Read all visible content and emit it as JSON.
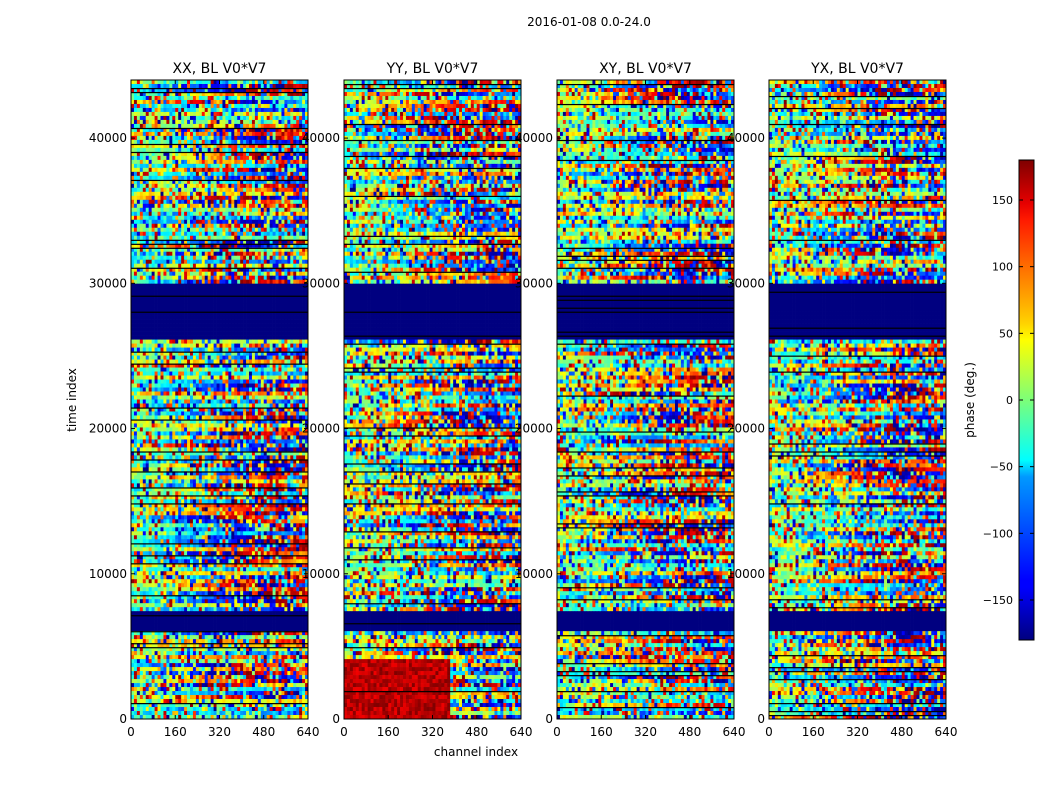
{
  "figure": {
    "title": "2016-01-08 0.0-24.0",
    "xlabel": "channel index",
    "ylabel": "time index",
    "colorbar_label": "phase (deg.)"
  },
  "chart_data": {
    "type": "heatmap",
    "colormap": "jet",
    "title": "2016-01-08 0.0-24.0",
    "xlabel": "channel index",
    "ylabel": "time index",
    "xlim": [
      0,
      640
    ],
    "ylim": [
      0,
      44000
    ],
    "x_ticks": [
      0,
      160,
      320,
      480,
      640
    ],
    "y_ticks": [
      0,
      10000,
      20000,
      30000,
      40000
    ],
    "colorbar": {
      "label": "phase (deg.)",
      "range": [
        -180,
        180
      ],
      "ticks": [
        150,
        100,
        50,
        0,
        -50,
        -100,
        -150
      ],
      "tick_labels": [
        "150",
        "100",
        "50",
        "0",
        "−50",
        "−100",
        "−150"
      ]
    },
    "panels": [
      {
        "title": "XX, BL V0*V7"
      },
      {
        "title": "YY, BL V0*V7"
      },
      {
        "title": "XY, BL V0*V7"
      },
      {
        "title": "YX, BL V0*V7"
      }
    ],
    "flagged_time_ranges": [
      [
        26200,
        30000
      ],
      [
        6000,
        7300
      ]
    ],
    "flagged_phase_deg": -180,
    "high_phase_region": {
      "panel": 1,
      "channel_range": [
        0,
        380
      ],
      "time_range": [
        0,
        4000
      ],
      "phase_deg": 160
    }
  }
}
